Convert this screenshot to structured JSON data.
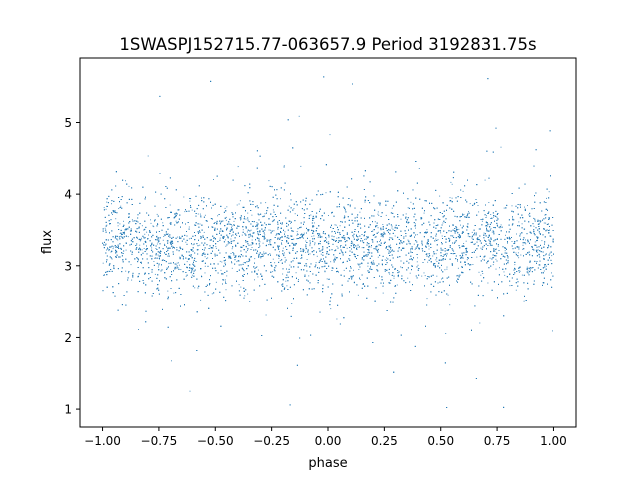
{
  "chart_data": {
    "type": "scatter",
    "title": "1SWASPJ152715.77-063657.9 Period 3192831.75s",
    "xlabel": "phase",
    "ylabel": "flux",
    "xlim": [
      -1.1,
      1.1
    ],
    "ylim": [
      0.75,
      5.9
    ],
    "x_ticks": [
      -1.0,
      -0.75,
      -0.5,
      -0.25,
      0.0,
      0.25,
      0.5,
      0.75,
      1.0
    ],
    "x_tick_labels": [
      "−1.00",
      "−0.75",
      "−0.50",
      "−0.25",
      "0.00",
      "0.25",
      "0.50",
      "0.75",
      "1.00"
    ],
    "y_ticks": [
      1,
      2,
      3,
      4,
      5
    ],
    "y_tick_labels": [
      "1",
      "2",
      "3",
      "4",
      "5"
    ],
    "grid": false,
    "legend": "none",
    "marker_color": "#1f77b4",
    "series": [
      {
        "x_range": [
          -1.0,
          1.0
        ],
        "median": 3.3,
        "spread_core": [
          2.6,
          4.1
        ],
        "min": 1.0,
        "max": 5.7,
        "x": [
          -1.0,
          -0.96,
          -0.9,
          -0.85,
          -0.8,
          -0.75,
          -0.7,
          -0.65,
          -0.6,
          -0.55,
          -0.5,
          -0.45,
          -0.4,
          -0.35,
          -0.3,
          -0.25,
          -0.2,
          -0.15,
          -0.1,
          -0.05,
          0.0,
          0.05,
          0.1,
          0.15,
          0.2,
          0.25,
          0.3,
          0.35,
          0.4,
          0.45,
          0.5,
          0.55,
          0.6,
          0.65,
          0.7,
          0.75,
          0.8,
          0.85,
          0.9,
          0.95,
          1.0
        ],
        "y": [
          3.3,
          3.35,
          3.3,
          3.25,
          3.3,
          3.25,
          3.3,
          3.3,
          3.25,
          3.35,
          3.3,
          3.3,
          3.3,
          3.35,
          3.3,
          3.4,
          3.3,
          3.25,
          3.3,
          3.3,
          3.2,
          3.3,
          3.3,
          3.25,
          3.3,
          3.3,
          3.25,
          3.3,
          3.35,
          3.3,
          3.3,
          3.35,
          3.3,
          3.35,
          3.4,
          3.35,
          3.3,
          3.25,
          3.3,
          3.3,
          3.3
        ]
      }
    ]
  }
}
